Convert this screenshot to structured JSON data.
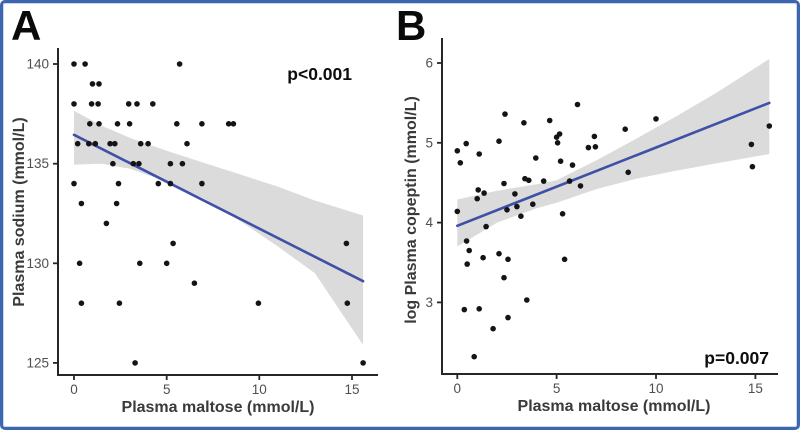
{
  "figure": {
    "background": "#ffffff",
    "border_color": "#3c67ae"
  },
  "colors": {
    "regression_line": "#3e51a6",
    "confidence_band": "#dbdbdb",
    "point": "#141414",
    "axis": "#262626",
    "tick_label": "#4f4f4f",
    "axis_title": "#3a3a3a",
    "annotation": "#0d0d0d",
    "panel_label": "#0a0a0a"
  },
  "chart_data": [
    {
      "type": "scatter",
      "panel_label": "A",
      "xlabel": "Plasma maltose (mmol/L)",
      "ylabel": "Plasma sodium (mmol/L)",
      "xticks": [
        0,
        5,
        10,
        15
      ],
      "yticks": [
        125,
        130,
        135,
        140
      ],
      "xlim": [
        -0.9,
        16.4
      ],
      "ylim": [
        124.4,
        140.8
      ],
      "annotation": "p<0.001",
      "annotation_corner": "top-right",
      "regression_line": {
        "x": [
          0,
          15.6
        ],
        "y": [
          136.45,
          129.1
        ]
      },
      "confidence_band": {
        "x": [
          0,
          1.5,
          3,
          5,
          7,
          9,
          11,
          13,
          15.6
        ],
        "upper": [
          137.65,
          136.9,
          136.3,
          135.65,
          135.05,
          134.45,
          133.85,
          133.15,
          132.4
        ],
        "lower": [
          134.95,
          135.0,
          134.75,
          134.1,
          133.25,
          132.1,
          130.85,
          129.5,
          125.9
        ]
      },
      "points": [
        [
          0.0,
          140
        ],
        [
          0.6,
          140
        ],
        [
          5.7,
          140
        ],
        [
          1.0,
          139
        ],
        [
          1.35,
          139
        ],
        [
          0.0,
          138
        ],
        [
          0.95,
          138
        ],
        [
          1.3,
          138
        ],
        [
          2.95,
          138
        ],
        [
          3.4,
          138
        ],
        [
          4.25,
          138
        ],
        [
          0.85,
          137
        ],
        [
          1.35,
          137
        ],
        [
          2.35,
          137
        ],
        [
          3.0,
          137
        ],
        [
          5.55,
          137
        ],
        [
          6.9,
          137
        ],
        [
          8.35,
          137
        ],
        [
          8.6,
          137
        ],
        [
          0.2,
          136
        ],
        [
          0.8,
          136
        ],
        [
          1.15,
          136
        ],
        [
          1.95,
          136
        ],
        [
          2.2,
          136
        ],
        [
          3.6,
          136
        ],
        [
          4.0,
          136
        ],
        [
          6.1,
          136
        ],
        [
          2.1,
          135
        ],
        [
          3.2,
          135
        ],
        [
          3.5,
          135
        ],
        [
          5.2,
          135
        ],
        [
          5.85,
          135
        ],
        [
          0.0,
          134
        ],
        [
          2.4,
          134
        ],
        [
          4.55,
          134
        ],
        [
          5.2,
          134
        ],
        [
          6.9,
          134
        ],
        [
          0.4,
          133
        ],
        [
          2.3,
          133
        ],
        [
          1.75,
          132
        ],
        [
          5.35,
          131
        ],
        [
          14.7,
          131
        ],
        [
          0.3,
          130
        ],
        [
          3.55,
          130
        ],
        [
          5.0,
          130
        ],
        [
          6.5,
          129
        ],
        [
          0.4,
          128
        ],
        [
          2.45,
          128
        ],
        [
          9.95,
          128
        ],
        [
          14.75,
          128
        ],
        [
          3.3,
          125
        ],
        [
          15.6,
          125
        ]
      ]
    },
    {
      "type": "scatter",
      "panel_label": "B",
      "xlabel": "Plasma maltose (mmol/L)",
      "ylabel": "log Plasma copeptin (mmol/L)",
      "xticks": [
        0,
        5,
        10,
        15
      ],
      "yticks": [
        3,
        4,
        5,
        6
      ],
      "xlim": [
        -0.8,
        16.2
      ],
      "ylim": [
        2.1,
        6.3
      ],
      "annotation": "p=0.007",
      "annotation_corner": "bottom-right",
      "regression_line": {
        "x": [
          0,
          15.7
        ],
        "y": [
          3.96,
          5.5
        ]
      },
      "confidence_band": {
        "x": [
          0,
          2,
          4,
          5,
          7,
          9,
          11,
          13,
          15.7
        ],
        "upper": [
          4.29,
          4.4,
          4.48,
          4.53,
          4.78,
          5.05,
          5.33,
          5.62,
          6.05
        ],
        "lower": [
          3.7,
          4.0,
          4.18,
          4.25,
          4.42,
          4.55,
          4.65,
          4.74,
          4.86
        ]
      },
      "points": [
        [
          0.0,
          4.9
        ],
        [
          0.45,
          4.99
        ],
        [
          0.15,
          4.75
        ],
        [
          1.1,
          4.86
        ],
        [
          2.1,
          5.02
        ],
        [
          2.4,
          5.36
        ],
        [
          3.35,
          5.25
        ],
        [
          4.65,
          5.28
        ],
        [
          6.05,
          5.48
        ],
        [
          5.0,
          5.07
        ],
        [
          5.15,
          5.11
        ],
        [
          5.05,
          5.0
        ],
        [
          6.6,
          4.94
        ],
        [
          6.95,
          4.95
        ],
        [
          6.9,
          5.08
        ],
        [
          8.45,
          5.17
        ],
        [
          10.0,
          5.3
        ],
        [
          14.8,
          4.98
        ],
        [
          15.7,
          5.21
        ],
        [
          14.85,
          4.7
        ],
        [
          3.95,
          4.81
        ],
        [
          5.2,
          4.77
        ],
        [
          5.8,
          4.72
        ],
        [
          8.6,
          4.63
        ],
        [
          2.35,
          4.49
        ],
        [
          3.4,
          4.55
        ],
        [
          3.6,
          4.53
        ],
        [
          4.35,
          4.52
        ],
        [
          5.65,
          4.52
        ],
        [
          6.2,
          4.46
        ],
        [
          1.05,
          4.41
        ],
        [
          1.35,
          4.37
        ],
        [
          1.0,
          4.3
        ],
        [
          2.9,
          4.36
        ],
        [
          3.0,
          4.2
        ],
        [
          3.8,
          4.23
        ],
        [
          2.5,
          4.16
        ],
        [
          0.0,
          4.14
        ],
        [
          3.2,
          4.08
        ],
        [
          5.3,
          4.11
        ],
        [
          1.45,
          3.95
        ],
        [
          0.47,
          3.77
        ],
        [
          0.6,
          3.65
        ],
        [
          0.5,
          3.48
        ],
        [
          1.3,
          3.56
        ],
        [
          2.1,
          3.61
        ],
        [
          2.55,
          3.54
        ],
        [
          2.35,
          3.31
        ],
        [
          5.4,
          3.54
        ],
        [
          3.5,
          3.03
        ],
        [
          0.35,
          2.91
        ],
        [
          1.1,
          2.92
        ],
        [
          2.55,
          2.81
        ],
        [
          1.8,
          2.67
        ],
        [
          0.85,
          2.32
        ]
      ]
    }
  ]
}
